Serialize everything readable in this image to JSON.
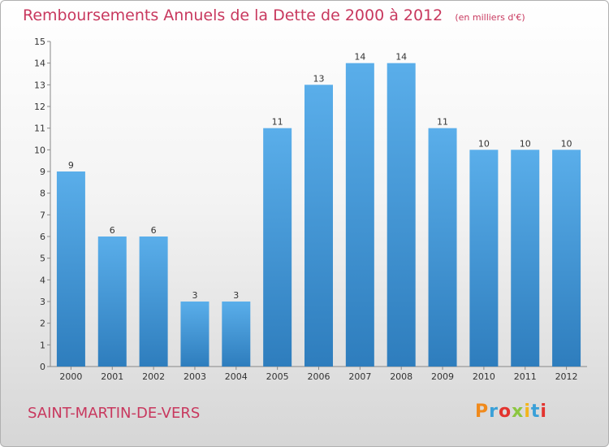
{
  "header": {
    "title": "Remboursements Annuels de la Dette de 2000 à 2012",
    "unit": "(en milliers d'€)"
  },
  "footer": {
    "commune": "SAINT-MARTIN-DE-VERS",
    "logo_text": "Proxiti",
    "logo_colors": [
      "#f08a1c",
      "#3aa0d8",
      "#e3342f",
      "#8cc63f",
      "#f3b51b",
      "#3aa0d8",
      "#e3342f"
    ]
  },
  "colors": {
    "bar_top": "#5aaeea",
    "bar_bottom": "#2e7dbd",
    "title": "#c8385e",
    "axis": "#888888"
  },
  "chart_data": {
    "type": "bar",
    "title": "Remboursements Annuels de la Dette de 2000 à 2012",
    "categories": [
      "2000",
      "2001",
      "2002",
      "2003",
      "2004",
      "2005",
      "2006",
      "2007",
      "2008",
      "2009",
      "2010",
      "2011",
      "2012"
    ],
    "values": [
      9,
      6,
      6,
      3,
      3,
      11,
      13,
      14,
      14,
      11,
      10,
      10,
      10
    ],
    "ylim": [
      0,
      15
    ],
    "yticks": [
      0,
      1,
      2,
      3,
      4,
      5,
      6,
      7,
      8,
      9,
      10,
      11,
      12,
      13,
      14,
      15
    ],
    "grid": false,
    "data_labels": true
  }
}
